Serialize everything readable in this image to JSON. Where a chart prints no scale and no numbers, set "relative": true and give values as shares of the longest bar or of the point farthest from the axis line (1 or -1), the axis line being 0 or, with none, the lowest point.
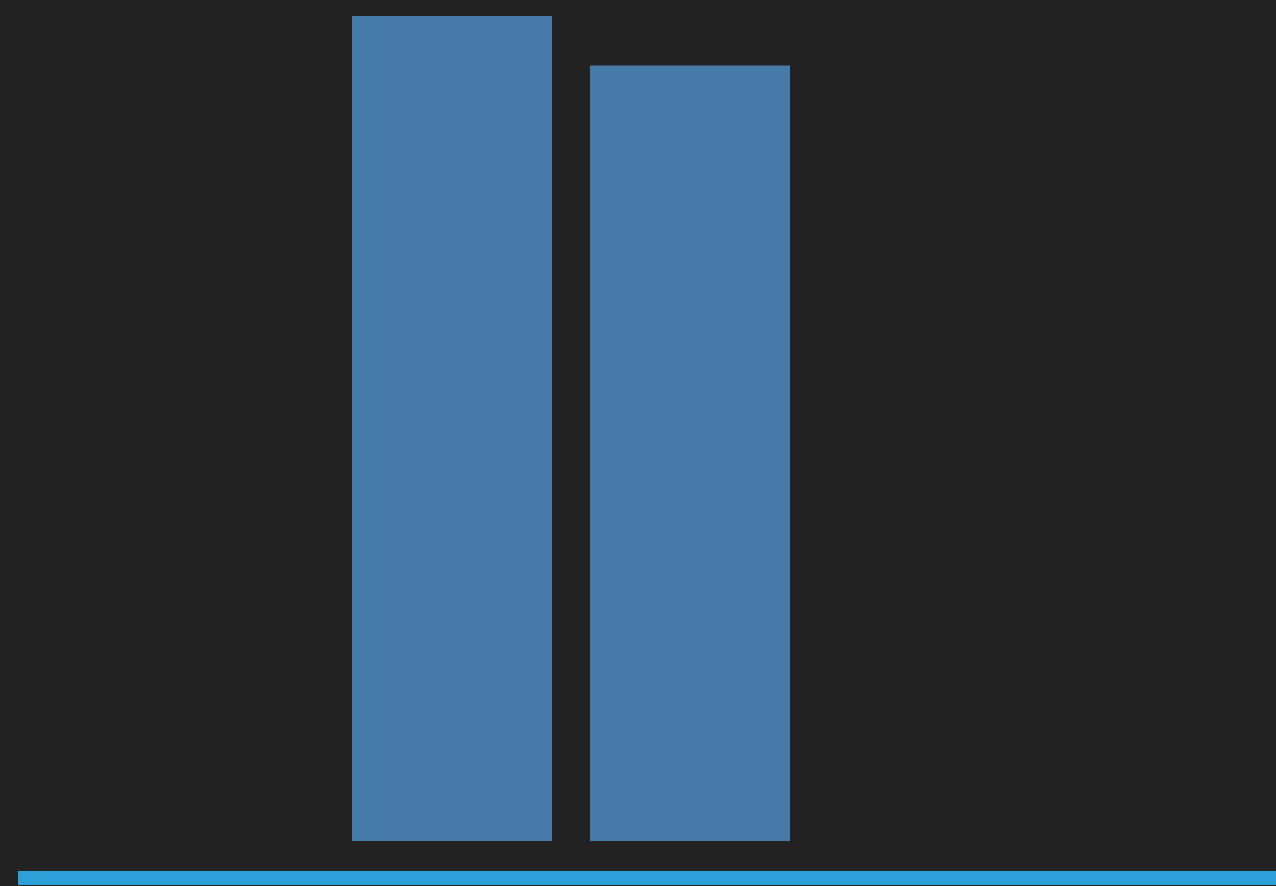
{
  "chart_data": {
    "type": "bar",
    "relative": true,
    "categories": [
      null,
      null
    ],
    "values": [
      1,
      0.94
    ],
    "color": "#457aa8"
  }
}
